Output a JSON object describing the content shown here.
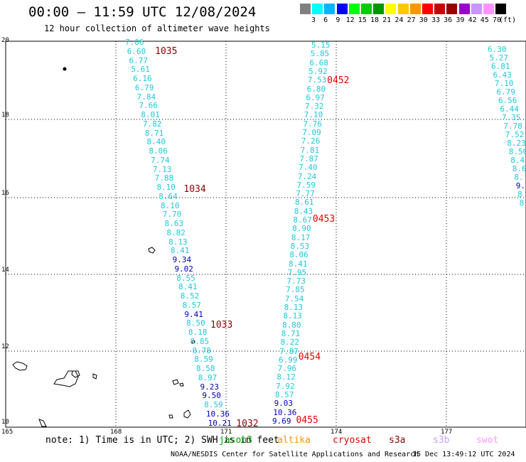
{
  "title": "00:00 – 11:59 UTC 12/08/2024",
  "subtitle": "12 hour collection of altimeter wave heights",
  "legend": {
    "colors": [
      "#808080",
      "#00ffff",
      "#00b4ff",
      "#0000ff",
      "#00ff00",
      "#00cc00",
      "#009600",
      "#ffff00",
      "#ffc800",
      "#ff9600",
      "#ff0000",
      "#c80000",
      "#960000",
      "#9600c8",
      "#c896ff",
      "#ff96ff",
      "#000000"
    ],
    "labels": [
      "3",
      "6",
      "9",
      "12",
      "15",
      "18",
      "21",
      "24",
      "27",
      "30",
      "33",
      "36",
      "39",
      "42",
      "45",
      "70"
    ],
    "units": "(ft)"
  },
  "map": {
    "lat_labels": [
      "20",
      "18",
      "16",
      "14",
      "12",
      "10"
    ],
    "lon_labels": [
      "165",
      "168",
      "171",
      "174",
      "177"
    ],
    "grid": true,
    "colors": {
      "cyan": "#00b4e6",
      "blue": "#0000b4",
      "dark_red": "#8b0000",
      "red": "#e60000",
      "text_cyan": "#1ec8dc"
    }
  },
  "tracks": [
    {
      "name": "track-west",
      "values": [
        "7.06",
        "6.60",
        "6.77",
        "5.61",
        "6.16",
        "6.79",
        "7.84",
        "7.66",
        "8.01",
        "7.82",
        "8.71",
        "8.40",
        "8.06",
        "7.74",
        "7.13",
        "7.88",
        "8.10",
        "8.64",
        "8.10",
        "7.70",
        "8.63",
        "8.82",
        "8.13",
        "8.41",
        "9.34",
        "9.02",
        "8.55",
        "8.41",
        "8.52",
        "8.57",
        "9.41",
        "8.50",
        "8.18",
        "8.85",
        "8.78",
        "8.59",
        "8.58",
        "8.97",
        "9.23",
        "9.50",
        "8.59",
        "10.36",
        "10.21"
      ],
      "times": [
        "1035",
        "1034",
        "1033",
        "1032"
      ]
    },
    {
      "name": "track-middle",
      "values": [
        "5.15",
        "5.85",
        "6.68",
        "5.92",
        "7.53",
        "6.80",
        "6.97",
        "7.32",
        "7.10",
        "7.76",
        "7.09",
        "7.26",
        "7.81",
        "7.87",
        "7.40",
        "7.24",
        "7.59",
        "7.77",
        "8.61",
        "8.43",
        "8.67",
        "8.90",
        "8.17",
        "8.53",
        "8.06",
        "8.41",
        "7.95",
        "7.73",
        "7.85",
        "7.54",
        "8.13",
        "8.13",
        "8.80",
        "8.71",
        "8.22",
        "7.87",
        "6.99",
        "7.96",
        "8.12",
        "7.92",
        "8.57",
        "9.03",
        "10.36",
        "9.69"
      ],
      "times": [
        "0452",
        "0453",
        "0454",
        "0455"
      ]
    },
    {
      "name": "track-east",
      "values": [
        "6.30",
        "5.27",
        "6.81",
        "6.43",
        "7.10",
        "6.79",
        "6.56",
        "6.44",
        "7.35",
        "7.78",
        "7.52",
        "8.23",
        "8.50",
        "8.4",
        "8.6",
        "8.",
        "9.",
        "8",
        "8"
      ],
      "times": []
    }
  ],
  "footer": {
    "note": "note: 1) Time is in UTC; 2) SWH is in feet",
    "satellites": [
      {
        "name": "jason3",
        "color": "#00a000"
      },
      {
        "name": "altika",
        "color": "#ff9600"
      },
      {
        "name": "cryosat",
        "color": "#e60000"
      },
      {
        "name": "s3a",
        "color": "#8b0000"
      },
      {
        "name": "s3b",
        "color": "#c8a0ff"
      },
      {
        "name": "swot",
        "color": "#ff96ff"
      }
    ],
    "credit": "NOAA/NESDIS Center for Satellite Applications and Research",
    "stamp": "15 Dec 13:49:12 UTC 2024"
  }
}
